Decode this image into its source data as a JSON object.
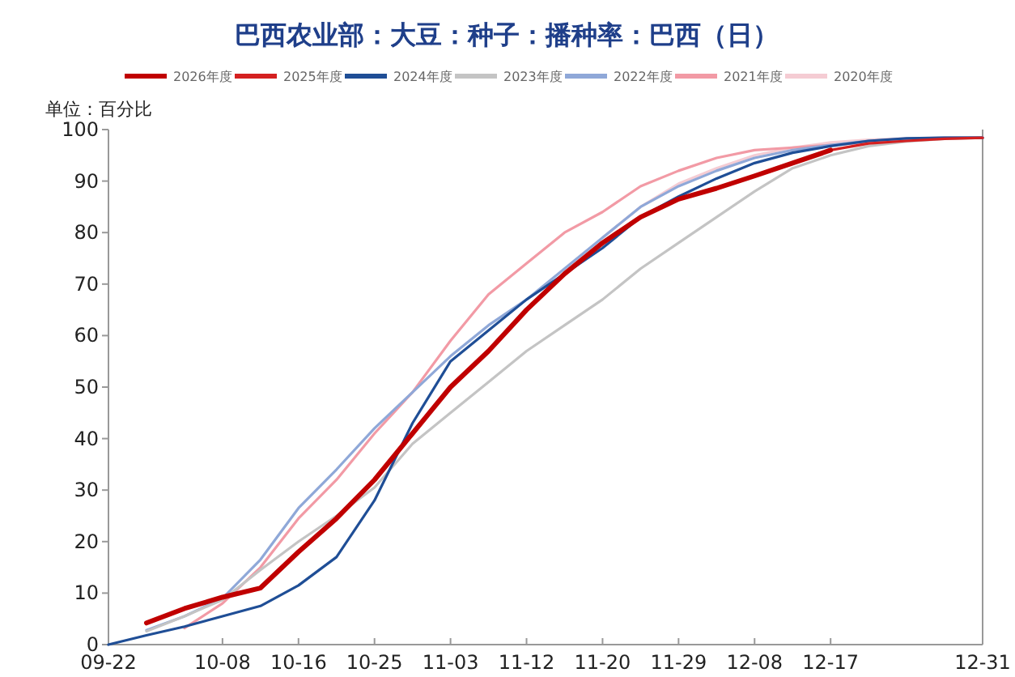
{
  "chart_data": {
    "type": "line",
    "title": "巴西农业部：大豆：种子：播种率：巴西（日）",
    "ylabel": "单位：百分比",
    "categories": [
      "09-22",
      null,
      null,
      "10-08",
      null,
      "10-16",
      null,
      "10-25",
      null,
      "11-03",
      null,
      "11-12",
      null,
      "11-20",
      null,
      "11-29",
      null,
      "12-08",
      null,
      "12-17",
      null,
      null,
      null,
      "12-31"
    ],
    "ylim": [
      0,
      100
    ],
    "yticks": [
      0,
      10,
      20,
      30,
      40,
      50,
      60,
      70,
      80,
      90,
      100
    ],
    "grid": false,
    "legend": "top",
    "marker": "none",
    "line_style": "solid",
    "series": [
      {
        "name": "2026年度",
        "color": "#c00000",
        "values": [
          null,
          4.2,
          7,
          9.2,
          11,
          18,
          24.5,
          32,
          41,
          50,
          57,
          65,
          72,
          78,
          83,
          86.5,
          88.6,
          91,
          93.5,
          96,
          null,
          null,
          null,
          null
        ]
      },
      {
        "name": "2025年度",
        "color": "#d42020",
        "values": [
          null,
          null,
          null,
          null,
          null,
          null,
          null,
          null,
          null,
          null,
          null,
          null,
          null,
          null,
          null,
          null,
          null,
          null,
          null,
          96,
          97.3,
          97.8,
          98.2,
          98.4
        ]
      },
      {
        "name": "2024年度",
        "color": "#1f4e96",
        "values": [
          0,
          1.8,
          3.5,
          5.5,
          7.5,
          11.5,
          17,
          28,
          43,
          55,
          61,
          67,
          72,
          77,
          83,
          87,
          90.5,
          93.5,
          95.5,
          96.8,
          97.8,
          98.3,
          98.4,
          98.4
        ]
      },
      {
        "name": "2023年度",
        "color": "#c4c4c4",
        "values": [
          null,
          2.6,
          5.5,
          8.7,
          14.5,
          20,
          25,
          30.5,
          39,
          45,
          51,
          57,
          62,
          67,
          73,
          78,
          83,
          88,
          92.5,
          95,
          96.8,
          97.7,
          98.2,
          98.4
        ]
      },
      {
        "name": "2022年度",
        "color": "#8fa8d8",
        "values": [
          null,
          2.8,
          5.5,
          9,
          16.5,
          26.5,
          34,
          42,
          49,
          56,
          62,
          67,
          73,
          79,
          85,
          89,
          92,
          94.5,
          96,
          97,
          97.8,
          98.2,
          98.4,
          98.5
        ]
      },
      {
        "name": "2021年度",
        "color": "#f29aa5",
        "values": [
          null,
          null,
          3.2,
          8,
          15,
          24.5,
          32,
          41,
          49,
          59,
          68,
          74,
          80,
          84,
          89,
          92,
          94.5,
          96,
          96.5,
          97,
          97.5,
          98,
          98.3,
          98.4
        ]
      },
      {
        "name": "2020年度",
        "color": "#f5ccd3",
        "values": [
          null,
          null,
          null,
          null,
          null,
          null,
          null,
          null,
          null,
          null,
          null,
          null,
          null,
          79,
          85,
          89.5,
          92.5,
          95,
          96.5,
          97.5,
          98,
          98.3,
          98.4,
          98.5
        ]
      }
    ]
  }
}
